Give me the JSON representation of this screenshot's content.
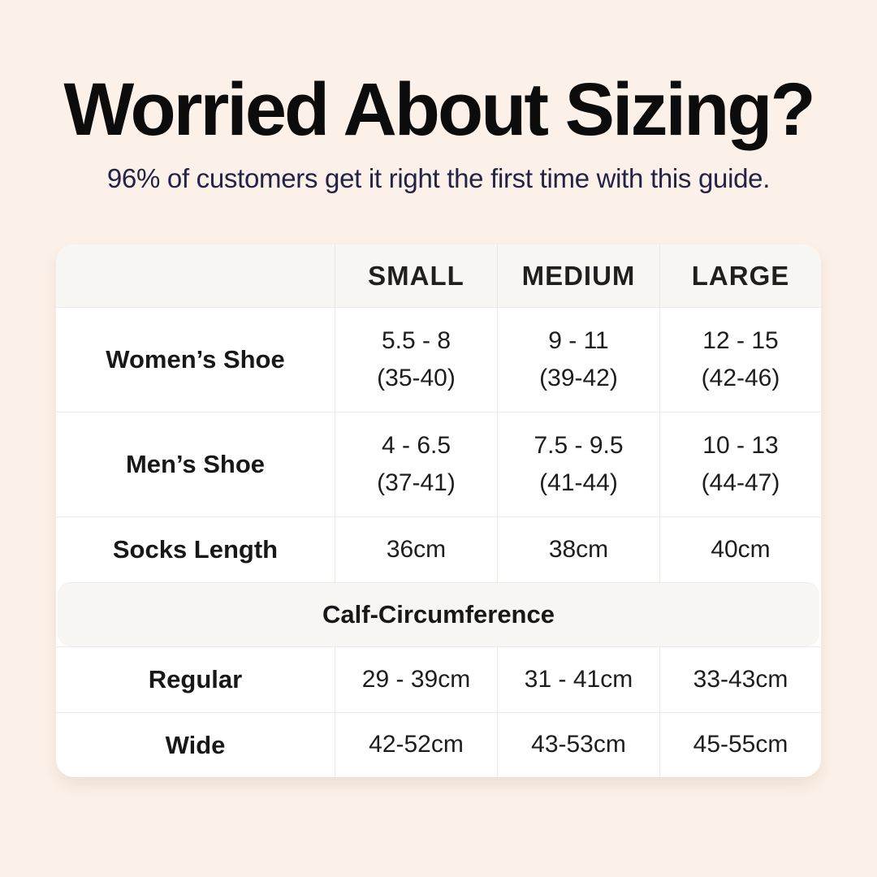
{
  "header": {
    "title": "Worried About Sizing?",
    "subtitle": "96% of customers get it right the first time with this guide."
  },
  "table": {
    "column_headers": [
      "SMALL",
      "MEDIUM",
      "LARGE"
    ],
    "rows": [
      {
        "label": "Women’s Shoe",
        "values": [
          {
            "line1": "5.5 - 8",
            "line2": "(35-40)"
          },
          {
            "line1": "9 - 11",
            "line2": "(39-42)"
          },
          {
            "line1": "12 - 15",
            "line2": "(42-46)"
          }
        ]
      },
      {
        "label": "Men’s Shoe",
        "values": [
          {
            "line1": "4 - 6.5",
            "line2": "(37-41)"
          },
          {
            "line1": "7.5 - 9.5",
            "line2": "(41-44)"
          },
          {
            "line1": "10 - 13",
            "line2": "(44-47)"
          }
        ]
      },
      {
        "label": "Socks Length",
        "values": [
          {
            "line1": "36cm"
          },
          {
            "line1": "38cm"
          },
          {
            "line1": "40cm"
          }
        ]
      }
    ],
    "section_header": "Calf-Circumference",
    "section_rows": [
      {
        "label": "Regular",
        "values": [
          {
            "line1": "29 - 39cm"
          },
          {
            "line1": "31 - 41cm"
          },
          {
            "line1": "33-43cm"
          }
        ]
      },
      {
        "label": "Wide",
        "values": [
          {
            "line1": "42-52cm"
          },
          {
            "line1": "43-53cm"
          },
          {
            "line1": "45-55cm"
          }
        ]
      }
    ]
  },
  "colors": {
    "page_background": "#fcf1e8",
    "card_background": "#ffffff",
    "header_band_background": "#f7f6f3",
    "border": "#e9e7e3",
    "title_text": "#0c0c0c",
    "subtitle_text": "#232247",
    "table_text": "#1a1a1a"
  },
  "chart_data": {
    "type": "table",
    "title": "Worried About Sizing?",
    "subtitle": "96% of customers get it right the first time with this guide.",
    "columns": [
      "",
      "SMALL",
      "MEDIUM",
      "LARGE"
    ],
    "rows": [
      [
        "Women’s Shoe",
        "5.5 - 8 (35-40)",
        "9 - 11 (39-42)",
        "12 - 15 (42-46)"
      ],
      [
        "Men’s Shoe",
        "4 - 6.5 (37-41)",
        "7.5 - 9.5 (41-44)",
        "10 - 13 (44-47)"
      ],
      [
        "Socks Length",
        "36cm",
        "38cm",
        "40cm"
      ],
      [
        "Calf-Circumference",
        "",
        "",
        ""
      ],
      [
        "Regular",
        "29 - 39cm",
        "31 - 41cm",
        "33-43cm"
      ],
      [
        "Wide",
        "42-52cm",
        "43-53cm",
        "45-55cm"
      ]
    ]
  }
}
